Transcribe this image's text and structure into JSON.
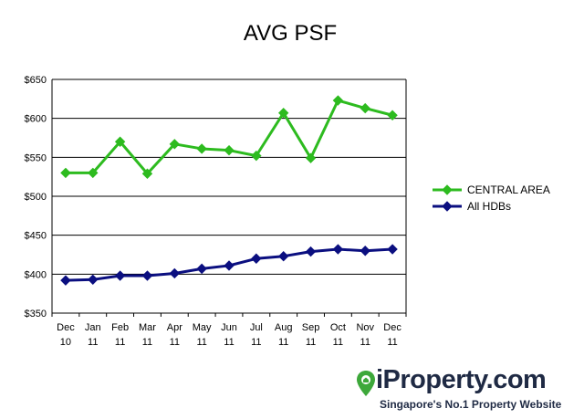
{
  "chart_data": {
    "type": "line",
    "title": "AVG PSF",
    "categories": [
      [
        "Dec",
        "10"
      ],
      [
        "Jan",
        "11"
      ],
      [
        "Feb",
        "11"
      ],
      [
        "Mar",
        "11"
      ],
      [
        "Apr",
        "11"
      ],
      [
        "May",
        "11"
      ],
      [
        "Jun",
        "11"
      ],
      [
        "Jul",
        "11"
      ],
      [
        "Aug",
        "11"
      ],
      [
        "Sep",
        "11"
      ],
      [
        "Oct",
        "11"
      ],
      [
        "Nov",
        "11"
      ],
      [
        "Dec",
        "11"
      ]
    ],
    "ylim": [
      350,
      650
    ],
    "yticks": [
      "$350",
      "$400",
      "$450",
      "$500",
      "$550",
      "$600",
      "$650"
    ],
    "ytick_values": [
      350,
      400,
      450,
      500,
      550,
      600,
      650
    ],
    "grid": true,
    "legend_position": "right",
    "series": [
      {
        "name": "CENTRAL AREA",
        "color": "#2dbb1f",
        "values": [
          530,
          530,
          570,
          529,
          567,
          561,
          559,
          552,
          607,
          549,
          623,
          613,
          604
        ]
      },
      {
        "name": "All HDBs",
        "color": "#0b0f80",
        "values": [
          392,
          393,
          398,
          398,
          401,
          407,
          411,
          420,
          423,
          429,
          432,
          430,
          432
        ]
      }
    ]
  },
  "branding": {
    "logo_name": "iProperty.com",
    "tagline": "Singapore's No.1 Property Website",
    "colors": {
      "logo_text": "#1f2a44",
      "pin_green": "#3da83a"
    }
  }
}
